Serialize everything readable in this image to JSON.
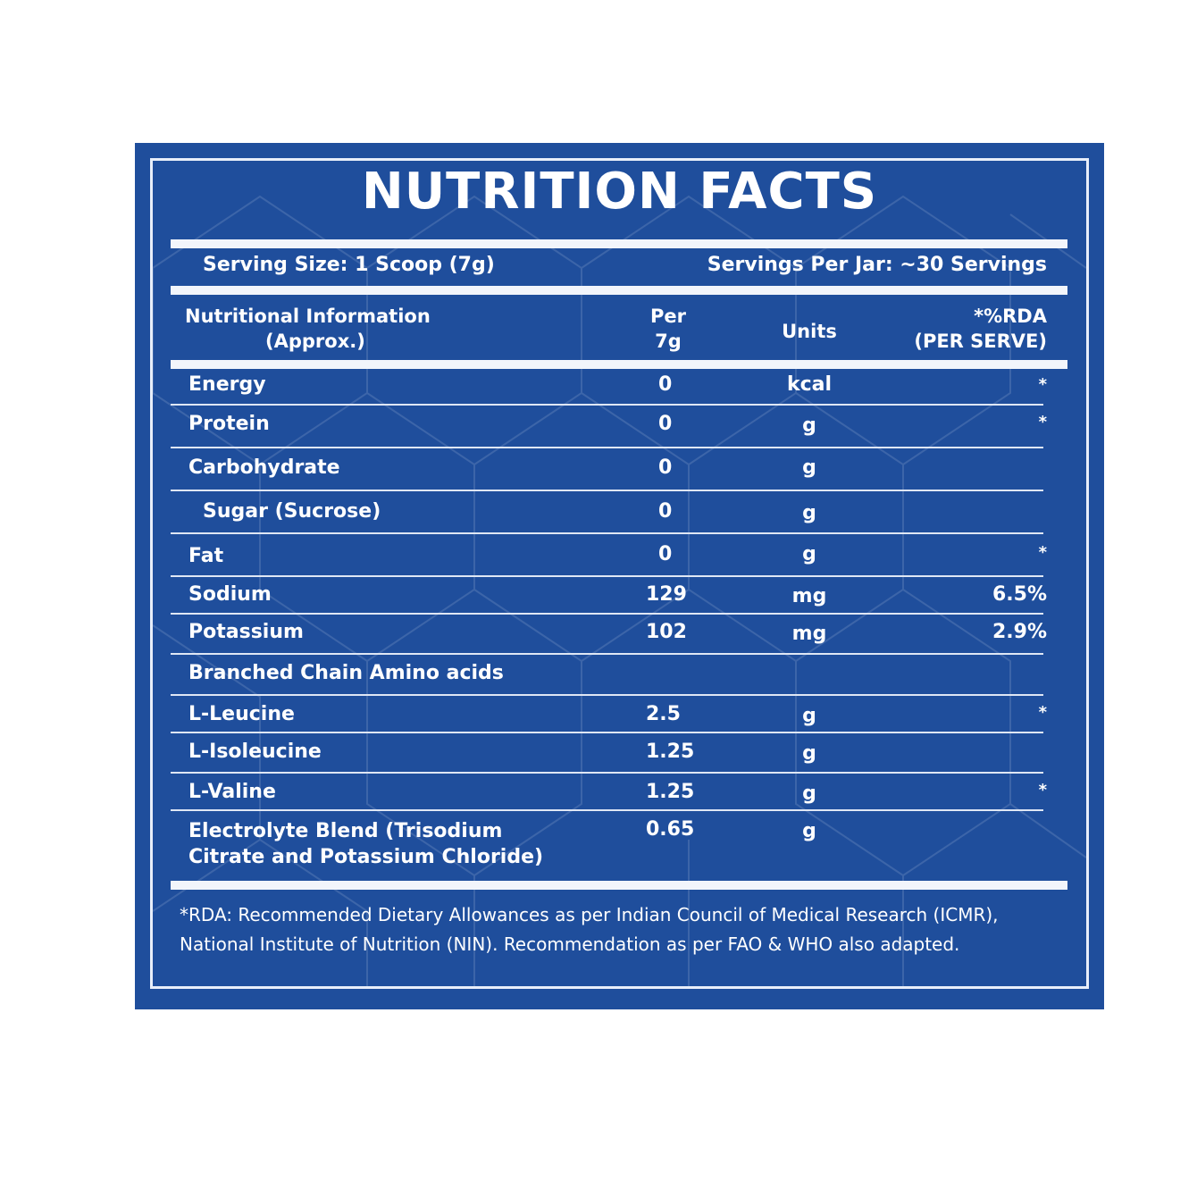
{
  "title": "NUTRITION FACTS",
  "serving": {
    "size": "Serving Size: 1 Scoop (7g)",
    "per_jar": "Servings Per Jar: ~30 Servings"
  },
  "headers": {
    "name_line1": "Nutritional Information",
    "name_line2": "(Approx.)",
    "per_line1": "Per",
    "per_line2": "7g",
    "units": "Units",
    "rda_line1": "*%RDA",
    "rda_line2": "(PER SERVE)"
  },
  "rows": [
    {
      "name": "Energy",
      "per": "0",
      "unit": "kcal",
      "rda": "*"
    },
    {
      "name": "Protein",
      "per": "0",
      "unit": "g",
      "rda": "*"
    },
    {
      "name": "Carbohydrate",
      "per": "0",
      "unit": "g",
      "rda": ""
    },
    {
      "name": "Sugar (Sucrose)",
      "per": "0",
      "unit": "g",
      "rda": ""
    },
    {
      "name": "Fat",
      "per": "0",
      "unit": "g",
      "rda": "*"
    },
    {
      "name": "Sodium",
      "per": "129",
      "unit": "mg",
      "rda": "6.5%"
    },
    {
      "name": "Potassium",
      "per": "102",
      "unit": "mg",
      "rda": "2.9%"
    },
    {
      "name": "Branched Chain Amino acids",
      "per": "",
      "unit": "",
      "rda": ""
    },
    {
      "name": "L-Leucine",
      "per": "2.5",
      "unit": "g",
      "rda": "*"
    },
    {
      "name": "L-Isoleucine",
      "per": "1.25",
      "unit": "g",
      "rda": ""
    },
    {
      "name": "L-Valine",
      "per": "1.25",
      "unit": "g",
      "rda": "*"
    },
    {
      "name_line1": "Electrolyte Blend (Trisodium",
      "name_line2": "Citrate and Potassium Chloride)",
      "per": "0.65",
      "unit": "g",
      "rda": ""
    }
  ],
  "footnote": "*RDA: Recommended Dietary Allowances as per Indian Council of Medical Research (ICMR), National Institute of Nutrition (NIN). Recommendation as per FAO & WHO also adapted.",
  "colors": {
    "panel_blue": "#1f4e9c",
    "text_white": "#ffffff",
    "rule_light": "#dfe7f5"
  }
}
